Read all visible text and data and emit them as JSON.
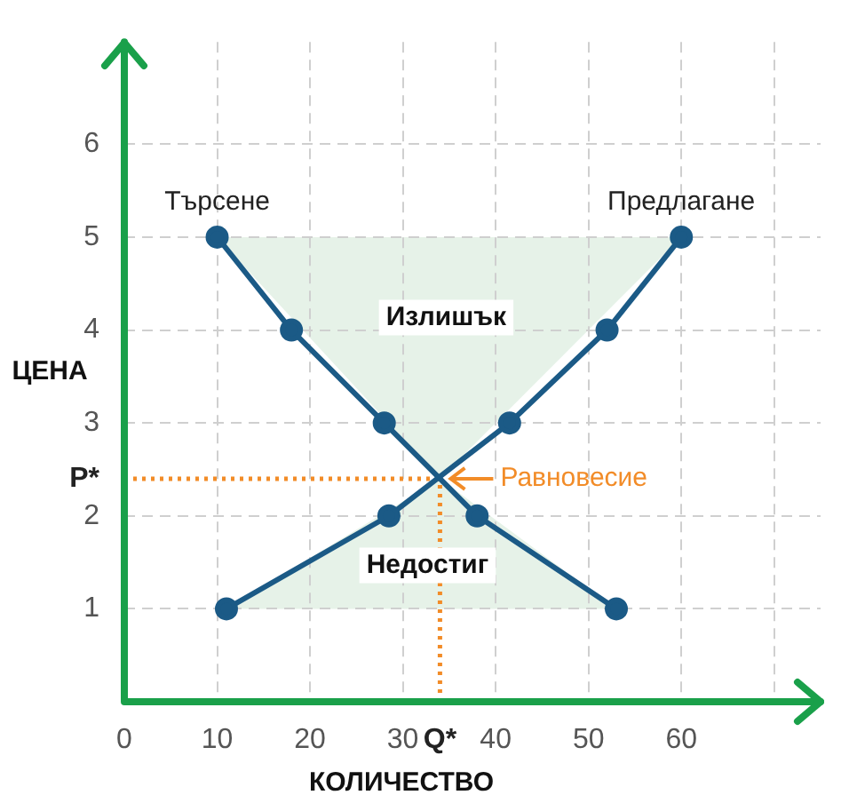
{
  "chart_data": {
    "type": "line",
    "xlabel": "КОЛИЧЕСТВО",
    "ylabel": "ЦЕНА",
    "xlim": [
      0,
      75
    ],
    "ylim": [
      0,
      7.1
    ],
    "xticks": [
      0,
      10,
      20,
      30,
      {
        "value": 34,
        "label": "Q*"
      },
      40,
      50,
      60,
      {
        "value": 70,
        "label": null
      }
    ],
    "yticks": [
      1,
      2,
      3,
      4,
      5,
      6,
      {
        "value": 2.4,
        "label": "P*"
      }
    ],
    "grid": true,
    "legend": false,
    "line_style": "solid",
    "series": [
      {
        "name": "Търсене",
        "color": "#1b5a86",
        "marker": "circle",
        "x": [
          10,
          18,
          28,
          38,
          53
        ],
        "values": [
          5,
          4,
          3,
          2,
          1
        ]
      },
      {
        "name": "Предлагане",
        "color": "#1b5a86",
        "marker": "circle",
        "x": [
          11,
          28.5,
          41.5,
          52,
          60
        ],
        "values": [
          1,
          2,
          3,
          4,
          5
        ]
      }
    ],
    "ref_lines": [
      {
        "axis": "y",
        "value": 2.4,
        "color": "#f28c28",
        "line_style": "dotted"
      },
      {
        "axis": "x",
        "value": 34,
        "color": "#f28c28",
        "line_style": "dotted"
      }
    ],
    "annotations": [
      {
        "text": "Равновесие",
        "x": 34,
        "y": 2.4
      },
      "Излишък",
      "Недостиг"
    ]
  }
}
